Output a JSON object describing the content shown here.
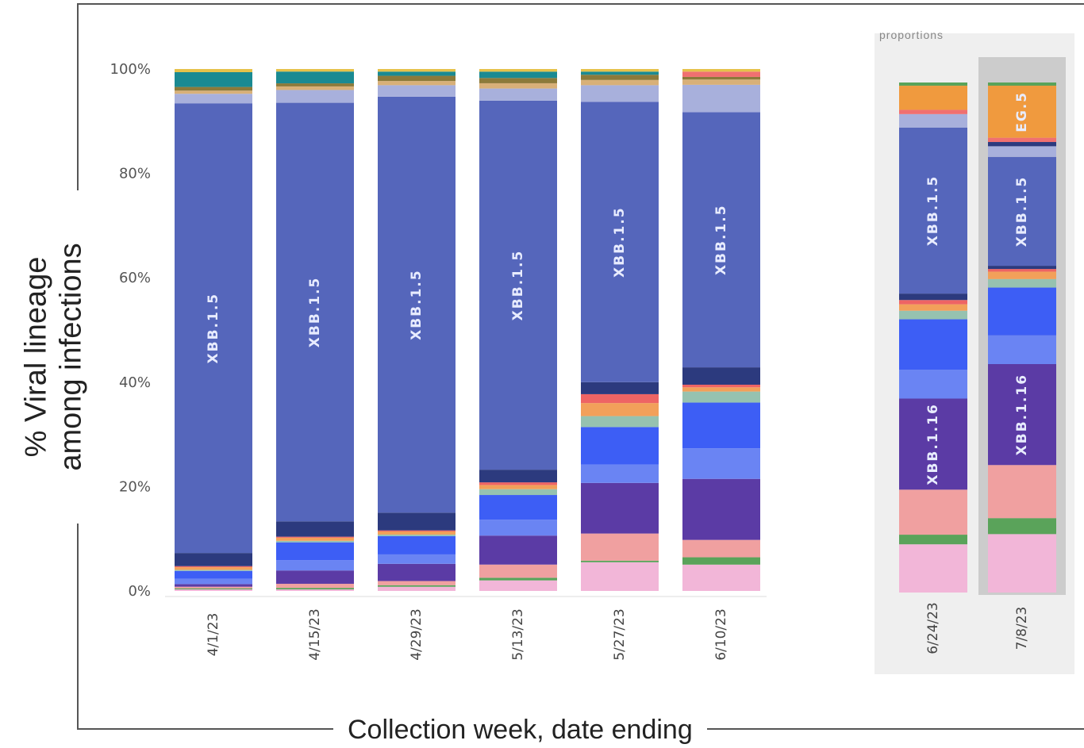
{
  "titles": {
    "y_axis": "% Viral lineage\namong infections",
    "x_axis": "Collection week, date ending",
    "inset_header": "proportions"
  },
  "chart_data": [
    {
      "type": "bar",
      "stacked": true,
      "categories": [
        "4/1/23",
        "4/15/23",
        "4/29/23",
        "5/13/23",
        "5/27/23",
        "6/10/23"
      ],
      "ylim": [
        0,
        100
      ],
      "ticks": [
        "100%",
        "80%",
        "60%",
        "40%",
        "20%",
        "0%"
      ],
      "tick_values": [
        100,
        80,
        60,
        40,
        20,
        0
      ],
      "grid": false,
      "bar_label_series": "XBB.1.5",
      "series_colors": {
        "pink": "#f2b6d8",
        "green": "#5aa35a",
        "salmon": "#f0a0a0",
        "purple": "#5b3ba5",
        "periwinkle": "#6a84f3",
        "blue": "#3d5ef5",
        "sage": "#96c2b0",
        "orange": "#f2a05a",
        "red": "#ee6464",
        "navy": "#2c3a7e",
        "XBB.1.5": "#5566bb",
        "lavender": "#a8b0dc",
        "tan": "#d8b078",
        "olive": "#8c7a3a",
        "teal": "#1a8a92",
        "gold": "#e6c24a"
      },
      "series_order": [
        "pink",
        "green",
        "salmon",
        "purple",
        "periwinkle",
        "blue",
        "sage",
        "orange",
        "red",
        "navy",
        "XBB.1.5",
        "lavender",
        "tan",
        "olive",
        "teal",
        "gold"
      ],
      "segments": [
        [
          {
            "s": "pink",
            "v": 0.3
          },
          {
            "s": "green",
            "v": 0.2
          },
          {
            "s": "salmon",
            "v": 0.3
          },
          {
            "s": "purple",
            "v": 0.5
          },
          {
            "s": "periwinkle",
            "v": 1.0
          },
          {
            "s": "blue",
            "v": 1.5
          },
          {
            "s": "sage",
            "v": 0.2
          },
          {
            "s": "orange",
            "v": 0.5
          },
          {
            "s": "red",
            "v": 0.2
          },
          {
            "s": "navy",
            "v": 2.5
          },
          {
            "s": "XBB.1.5",
            "v": 85.3
          },
          {
            "s": "lavender",
            "v": 1.8
          },
          {
            "s": "tan",
            "v": 0.6
          },
          {
            "s": "olive",
            "v": 0.7
          },
          {
            "s": "teal",
            "v": 2.8
          },
          {
            "s": "gold",
            "v": 0.6
          }
        ],
        [
          {
            "s": "pink",
            "v": 0.3
          },
          {
            "s": "green",
            "v": 0.3
          },
          {
            "s": "salmon",
            "v": 0.8
          },
          {
            "s": "purple",
            "v": 2.6
          },
          {
            "s": "periwinkle",
            "v": 2.0
          },
          {
            "s": "blue",
            "v": 3.5
          },
          {
            "s": "sage",
            "v": 0.3
          },
          {
            "s": "orange",
            "v": 0.6
          },
          {
            "s": "red",
            "v": 0.2
          },
          {
            "s": "navy",
            "v": 3.0
          },
          {
            "s": "XBB.1.5",
            "v": 81.8
          },
          {
            "s": "lavender",
            "v": 2.5
          },
          {
            "s": "tan",
            "v": 0.7
          },
          {
            "s": "olive",
            "v": 0.6
          },
          {
            "s": "teal",
            "v": 2.3
          },
          {
            "s": "gold",
            "v": 0.5
          }
        ],
        [
          {
            "s": "pink",
            "v": 0.8
          },
          {
            "s": "green",
            "v": 0.3
          },
          {
            "s": "salmon",
            "v": 0.8
          },
          {
            "s": "purple",
            "v": 3.3
          },
          {
            "s": "periwinkle",
            "v": 1.8
          },
          {
            "s": "blue",
            "v": 3.5
          },
          {
            "s": "sage",
            "v": 0.3
          },
          {
            "s": "orange",
            "v": 0.6
          },
          {
            "s": "red",
            "v": 0.2
          },
          {
            "s": "navy",
            "v": 3.4
          },
          {
            "s": "XBB.1.5",
            "v": 79.7
          },
          {
            "s": "lavender",
            "v": 2.2
          },
          {
            "s": "tan",
            "v": 0.8
          },
          {
            "s": "olive",
            "v": 1.0
          },
          {
            "s": "teal",
            "v": 0.8
          },
          {
            "s": "gold",
            "v": 0.5
          }
        ],
        [
          {
            "s": "pink",
            "v": 2.0
          },
          {
            "s": "green",
            "v": 0.5
          },
          {
            "s": "salmon",
            "v": 2.5
          },
          {
            "s": "purple",
            "v": 5.5
          },
          {
            "s": "periwinkle",
            "v": 3.0
          },
          {
            "s": "blue",
            "v": 4.7
          },
          {
            "s": "sage",
            "v": 1.1
          },
          {
            "s": "orange",
            "v": 0.8
          },
          {
            "s": "red",
            "v": 0.5
          },
          {
            "s": "navy",
            "v": 2.4
          },
          {
            "s": "XBB.1.5",
            "v": 70.0
          },
          {
            "s": "lavender",
            "v": 2.3
          },
          {
            "s": "tan",
            "v": 1.0
          },
          {
            "s": "olive",
            "v": 1.0
          },
          {
            "s": "teal",
            "v": 1.2
          },
          {
            "s": "gold",
            "v": 0.5
          }
        ],
        [
          {
            "s": "pink",
            "v": 5.5
          },
          {
            "s": "green",
            "v": 0.3
          },
          {
            "s": "salmon",
            "v": 5.2
          },
          {
            "s": "purple",
            "v": 9.7
          },
          {
            "s": "periwinkle",
            "v": 3.5
          },
          {
            "s": "blue",
            "v": 7.2
          },
          {
            "s": "sage",
            "v": 2.1
          },
          {
            "s": "orange",
            "v": 2.5
          },
          {
            "s": "red",
            "v": 1.7
          },
          {
            "s": "navy",
            "v": 2.3
          },
          {
            "s": "XBB.1.5",
            "v": 53.7
          },
          {
            "s": "lavender",
            "v": 3.2
          },
          {
            "s": "tan",
            "v": 1.0
          },
          {
            "s": "olive",
            "v": 1.0
          },
          {
            "s": "teal",
            "v": 0.6
          },
          {
            "s": "gold",
            "v": 0.5
          }
        ],
        [
          {
            "s": "pink",
            "v": 5.0
          },
          {
            "s": "green",
            "v": 1.4
          },
          {
            "s": "salmon",
            "v": 3.3
          },
          {
            "s": "purple",
            "v": 11.6
          },
          {
            "s": "periwinkle",
            "v": 5.8
          },
          {
            "s": "blue",
            "v": 8.7
          },
          {
            "s": "sage",
            "v": 2.1
          },
          {
            "s": "orange",
            "v": 0.8
          },
          {
            "s": "red",
            "v": 0.5
          },
          {
            "s": "navy",
            "v": 3.3
          },
          {
            "s": "XBB.1.5",
            "v": 48.5
          },
          {
            "s": "lavender",
            "v": 5.2
          },
          {
            "s": "tan",
            "v": 1.0
          },
          {
            "s": "olive",
            "v": 0.5
          },
          {
            "s": "red2",
            "v": 1.0
          },
          {
            "s": "gold",
            "v": 0.5
          }
        ]
      ]
    },
    {
      "type": "bar",
      "stacked": true,
      "categories": [
        "6/24/23",
        "7/8/23"
      ],
      "ylim": [
        0,
        100
      ],
      "highlighted_category": "7/8/23",
      "segments": [
        [
          {
            "s": "pink",
            "v": 9.0
          },
          {
            "s": "green",
            "v": 1.8
          },
          {
            "s": "salmon",
            "v": 8.4
          },
          {
            "s": "purple",
            "v": 17.0
          },
          {
            "s": "periwinkle",
            "v": 5.4
          },
          {
            "s": "blue",
            "v": 9.4
          },
          {
            "s": "sage",
            "v": 1.6
          },
          {
            "s": "orange",
            "v": 1.2
          },
          {
            "s": "red",
            "v": 0.8
          },
          {
            "s": "navy",
            "v": 1.2
          },
          {
            "s": "XBB.1.5",
            "v": 31.0
          },
          {
            "s": "lavender",
            "v": 2.5
          },
          {
            "s": "red2",
            "v": 0.8
          },
          {
            "s": "EG.5",
            "v": 4.5
          },
          {
            "s": "green",
            "v": 0.6
          }
        ],
        [
          {
            "s": "pink",
            "v": 11.0
          },
          {
            "s": "green",
            "v": 3.0
          },
          {
            "s": "salmon",
            "v": 10.0
          },
          {
            "s": "purple",
            "v": 19.0
          },
          {
            "s": "periwinkle",
            "v": 5.4
          },
          {
            "s": "blue",
            "v": 9.0
          },
          {
            "s": "sage",
            "v": 1.6
          },
          {
            "s": "orange",
            "v": 1.4
          },
          {
            "s": "red",
            "v": 0.5
          },
          {
            "s": "navy",
            "v": 0.6
          },
          {
            "s": "XBB.1.5",
            "v": 20.5
          },
          {
            "s": "lavender",
            "v": 2.0
          },
          {
            "s": "navy",
            "v": 0.8
          },
          {
            "s": "red2",
            "v": 0.8
          },
          {
            "s": "EG.5",
            "v": 9.8
          },
          {
            "s": "green",
            "v": 0.6
          }
        ]
      ],
      "bar_labels": [
        [
          {
            "series": "XBB.1.5",
            "text": "XBB.1.5"
          },
          {
            "series": "purple",
            "text": "XBB.1.16"
          }
        ],
        [
          {
            "series": "XBB.1.5",
            "text": "XBB.1.5"
          },
          {
            "series": "purple",
            "text": "XBB.1.16"
          },
          {
            "series": "EG.5",
            "text": "EG.5"
          }
        ]
      ]
    }
  ],
  "extra_colors": {
    "red2": "#f07070",
    "EG.5": "#f09a3e",
    "highlight": "#cccccc",
    "bar_label": "#e8ecff",
    "axis": "#999999"
  }
}
